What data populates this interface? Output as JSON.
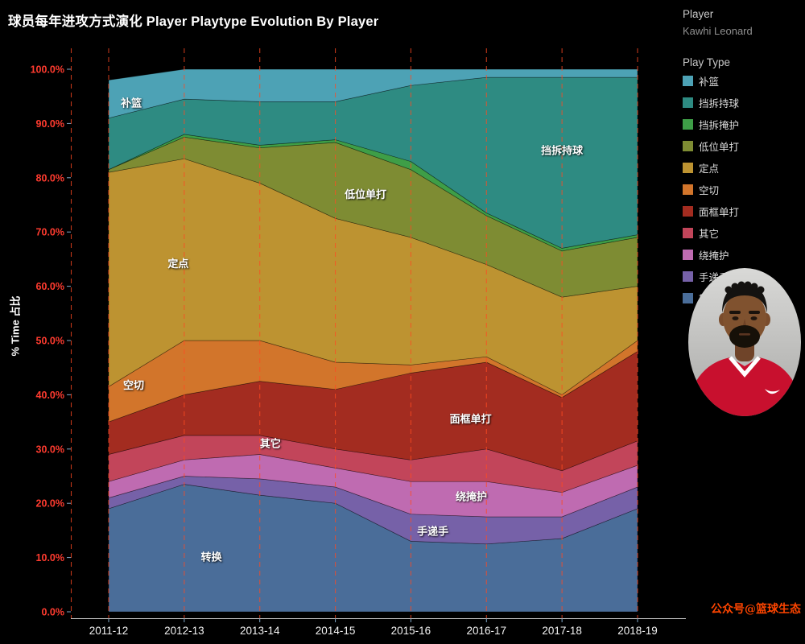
{
  "title": "球员每年进攻方式演化 Player Playtype Evolution By Player",
  "y_axis": {
    "label": "% Time 占比",
    "tick_labels": [
      "0.0%",
      "10.0%",
      "20.0%",
      "30.0%",
      "40.0%",
      "50.0%",
      "60.0%",
      "70.0%",
      "80.0%",
      "90.0%",
      "100.0%"
    ],
    "tick_color": "#ff3b2f"
  },
  "x_axis": {
    "tick_labels": [
      "2011-12",
      "2012-13",
      "2013-14",
      "2014-15",
      "2015-16",
      "2016-17",
      "2017-18",
      "2018-19"
    ],
    "tick_color": "#f2f2f2"
  },
  "right_panel": {
    "player_header": "Player",
    "player_value": "Kawhi Leonard",
    "legend_header": "Play Type",
    "watermark": "公众号@篮球生态"
  },
  "colors": {
    "background": "#000000",
    "gridline": "#ff4a22",
    "axis_line": "#c8c8c8",
    "tick_mark": "#7fa8c9",
    "area_label": "#ffffff"
  },
  "chart_data": {
    "type": "area",
    "stacking": "percent",
    "title": "球员每年进攻方式演化 Player Playtype Evolution By Player",
    "xlabel": "",
    "ylabel": "% Time 占比",
    "ylim": [
      0,
      100
    ],
    "grid": "vertical-dashed",
    "legend_position": "right",
    "x": [
      "2011-12",
      "2012-13",
      "2013-14",
      "2014-15",
      "2015-16",
      "2016-17",
      "2017-18",
      "2018-19"
    ],
    "series": [
      {
        "name": "转换",
        "color": "#4a6d99",
        "values": [
          19,
          23.5,
          21.5,
          20,
          13,
          12.5,
          13.5,
          19
        ]
      },
      {
        "name": "手递手",
        "color": "#7661a8",
        "values": [
          2,
          1.5,
          3,
          3,
          5,
          5,
          4,
          4
        ]
      },
      {
        "name": "绕掩护",
        "color": "#bf6bb1",
        "values": [
          3,
          3,
          4.5,
          3.5,
          6,
          6.5,
          4.5,
          4
        ]
      },
      {
        "name": "其它",
        "color": "#c2455a",
        "values": [
          5,
          4.5,
          3.5,
          3.5,
          4,
          6,
          4,
          4.5
        ]
      },
      {
        "name": "面框单打",
        "color": "#a32c20",
        "values": [
          6,
          7.5,
          10,
          11,
          16,
          16,
          13.5,
          16.5
        ]
      },
      {
        "name": "空切",
        "color": "#d2752b",
        "values": [
          6.5,
          10,
          7.5,
          5,
          1.5,
          1,
          0.5,
          2
        ]
      },
      {
        "name": "定点",
        "color": "#bd9331",
        "values": [
          39.5,
          33.5,
          29,
          26.5,
          23.5,
          17,
          18,
          10
        ]
      },
      {
        "name": "低位单打",
        "color": "#7e8c33",
        "values": [
          0.5,
          4,
          6.5,
          14,
          12.5,
          9,
          8.5,
          9
        ]
      },
      {
        "name": "挡拆掩护",
        "color": "#3e9e47",
        "values": [
          0,
          0.5,
          0.5,
          0.5,
          1.5,
          0.5,
          0.5,
          0.5
        ]
      },
      {
        "name": "挡拆持球",
        "color": "#2e8b82",
        "values": [
          9.5,
          6.5,
          8,
          7,
          14,
          25,
          31.5,
          29
        ]
      },
      {
        "name": "补篮",
        "color": "#4da2b5",
        "values": [
          7,
          5.5,
          6,
          6,
          3,
          1.5,
          1.5,
          1.5
        ]
      }
    ],
    "area_labels": [
      {
        "text": "补篮",
        "season": 0.3,
        "pct": 93.8
      },
      {
        "text": "挡拆持球",
        "season": 6.0,
        "pct": 85.0
      },
      {
        "text": "低位单打",
        "season": 3.4,
        "pct": 76.9
      },
      {
        "text": "定点",
        "season": 0.92,
        "pct": 64.2
      },
      {
        "text": "空切",
        "season": 0.33,
        "pct": 41.8
      },
      {
        "text": "面框单打",
        "season": 4.79,
        "pct": 35.5
      },
      {
        "text": "其它",
        "season": 2.14,
        "pct": 31.0
      },
      {
        "text": "绕掩护",
        "season": 4.8,
        "pct": 21.2
      },
      {
        "text": "手递手",
        "season": 4.29,
        "pct": 14.8
      },
      {
        "text": "转换",
        "season": 1.36,
        "pct": 10.1
      }
    ]
  }
}
